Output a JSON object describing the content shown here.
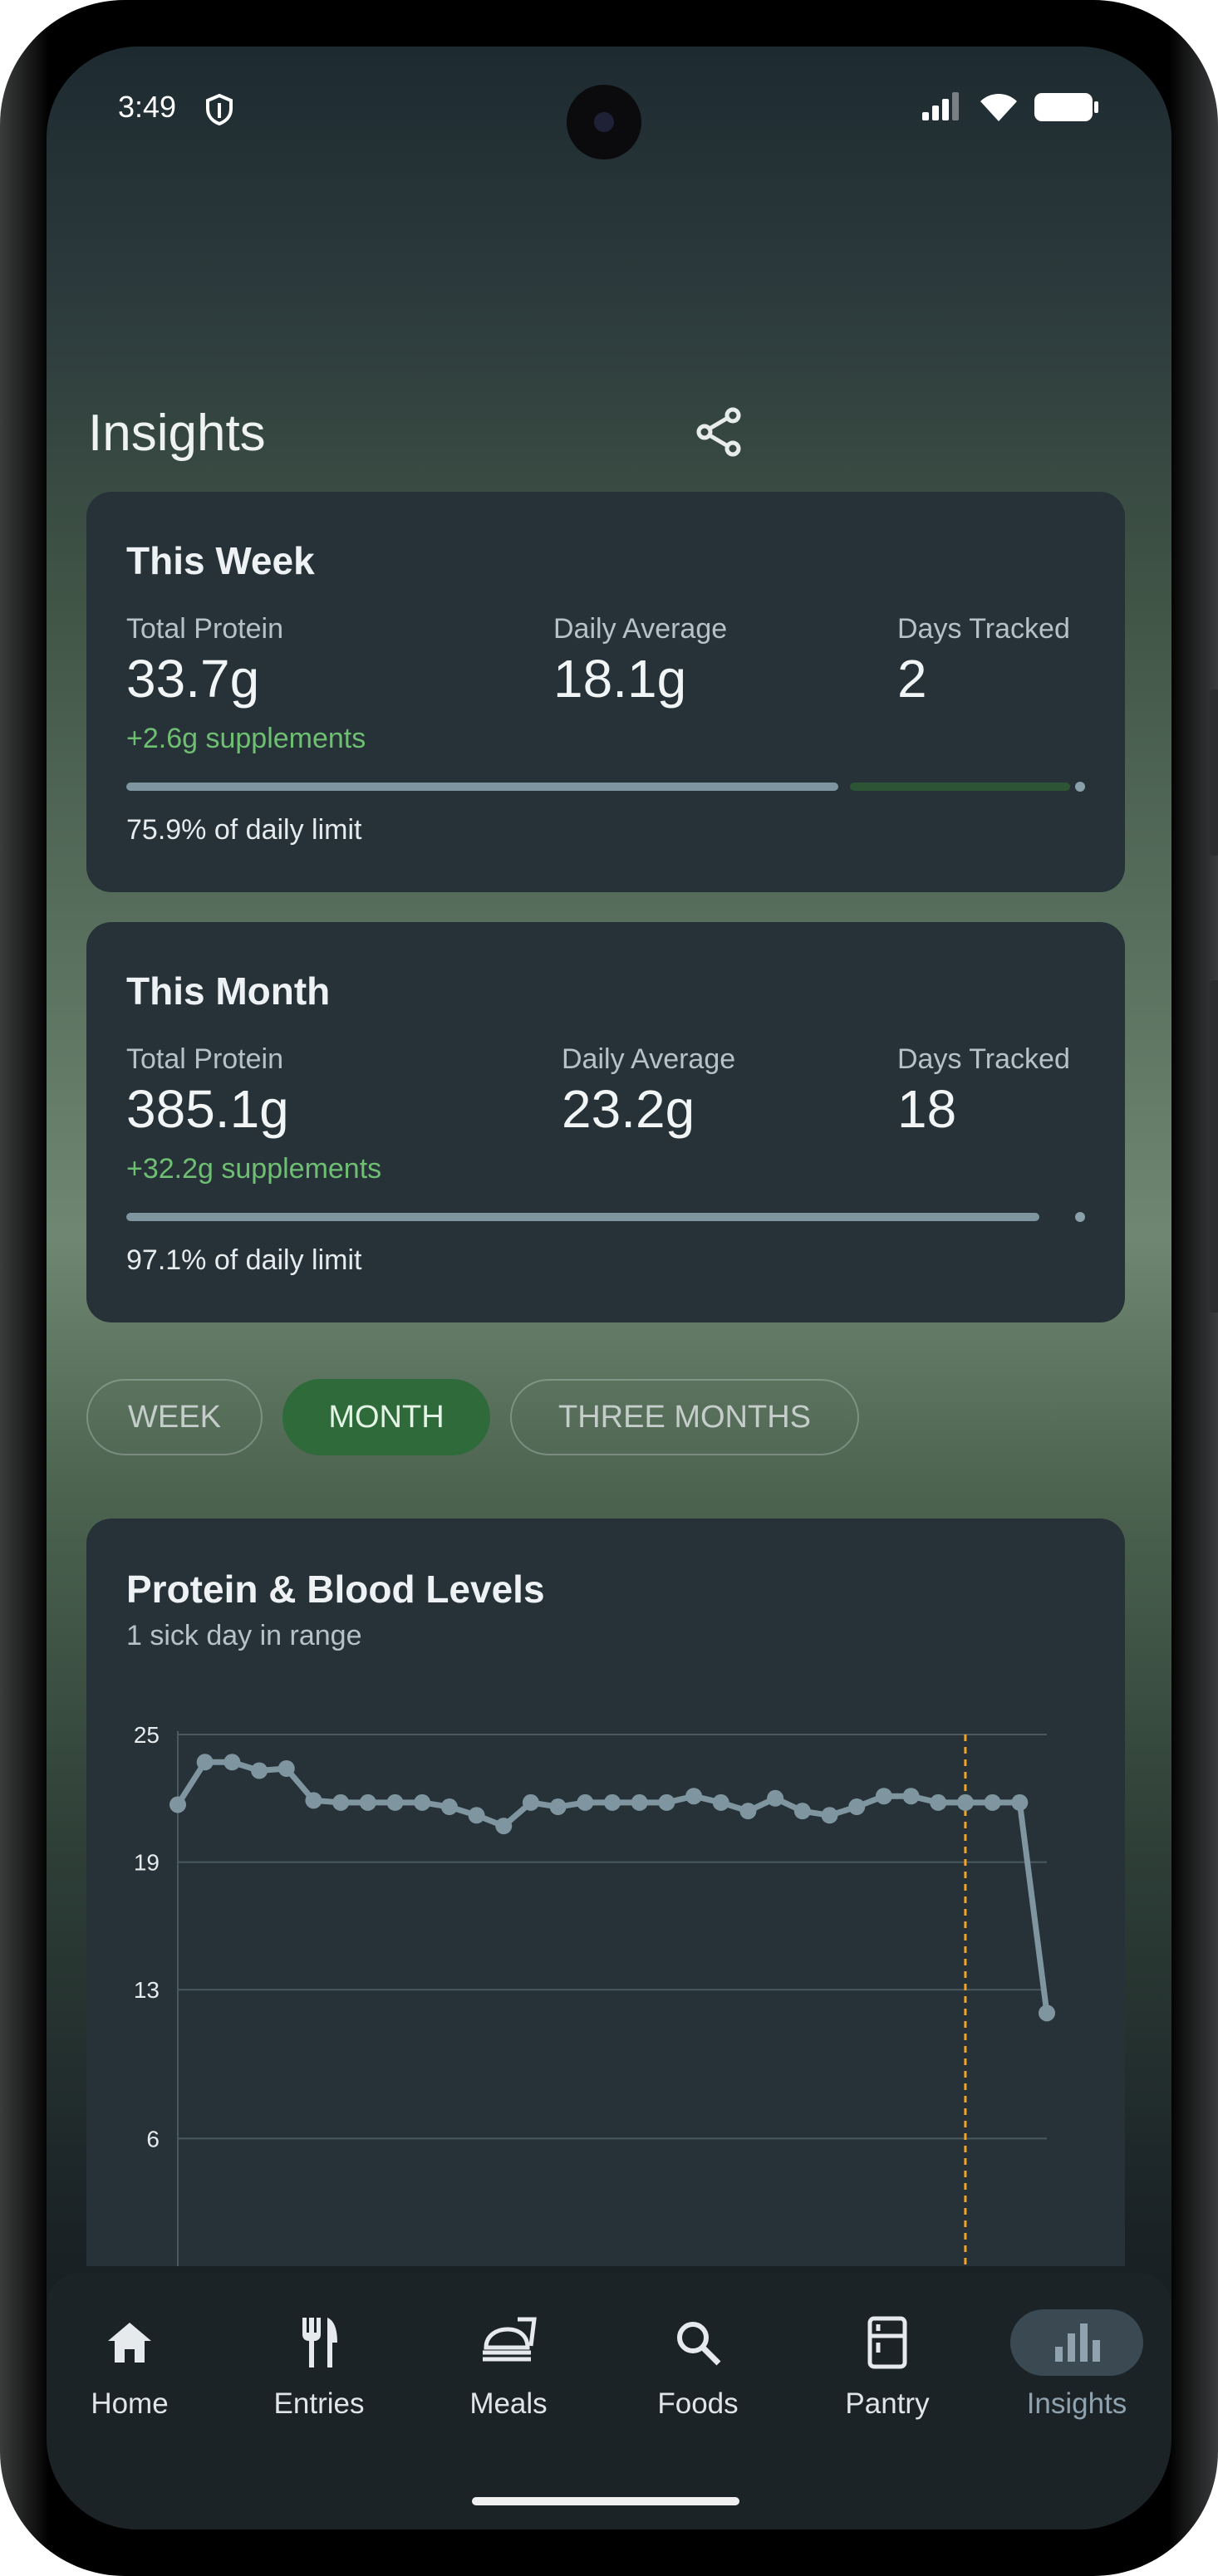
{
  "status_bar": {
    "time": "3:49"
  },
  "header": {
    "title": "Insights"
  },
  "week_card": {
    "title": "This Week",
    "total_label": "Total Protein",
    "total_value": "33.7g",
    "supplements": "+2.6g supplements",
    "avg_label": "Daily Average",
    "avg_value": "18.1g",
    "days_label": "Days Tracked",
    "days_value": "2",
    "limit_text": "75.9% of daily limit",
    "progress_percent": 75.9
  },
  "month_card": {
    "title": "This Month",
    "total_label": "Total Protein",
    "total_value": "385.1g",
    "supplements": "+32.2g supplements",
    "avg_label": "Daily Average",
    "avg_value": "23.2g",
    "days_label": "Days Tracked",
    "days_value": "18",
    "limit_text": "97.1% of daily limit",
    "progress_percent": 97.1
  },
  "range_chips": [
    {
      "label": "WEEK",
      "selected": false
    },
    {
      "label": "MONTH",
      "selected": true
    },
    {
      "label": "THREE MONTHS",
      "selected": false
    }
  ],
  "chart_card": {
    "title": "Protein & Blood Levels",
    "subtitle": "1 sick day in range"
  },
  "chart_data": {
    "type": "line",
    "title": "Protein & Blood Levels",
    "ylim": [
      0,
      25
    ],
    "yticks": [
      "25",
      "19",
      "13",
      "6"
    ],
    "grid": true,
    "series": [
      {
        "values": [
          21.7,
          23.7,
          23.7,
          23.3,
          23.4,
          21.9,
          21.8,
          21.8,
          21.8,
          21.8,
          21.6,
          21.2,
          20.7,
          21.8,
          21.6,
          21.8,
          21.8,
          21.8,
          21.8,
          22.1,
          21.8,
          21.4,
          22.0,
          21.4,
          21.2,
          21.6,
          22.1,
          22.1,
          21.8,
          21.8,
          21.8,
          21.8,
          11.9
        ]
      }
    ],
    "marker_index": 29,
    "colors": {
      "line": "#7f96a1",
      "marker": "#f0a52a",
      "grid": "#4a5960"
    }
  },
  "nav": {
    "items": [
      {
        "label": "Home",
        "icon": "home-icon"
      },
      {
        "label": "Entries",
        "icon": "fork-knife-icon"
      },
      {
        "label": "Meals",
        "icon": "meal-icon"
      },
      {
        "label": "Foods",
        "icon": "search-icon"
      },
      {
        "label": "Pantry",
        "icon": "fridge-icon"
      },
      {
        "label": "Insights",
        "icon": "bar-chart-icon"
      }
    ]
  }
}
